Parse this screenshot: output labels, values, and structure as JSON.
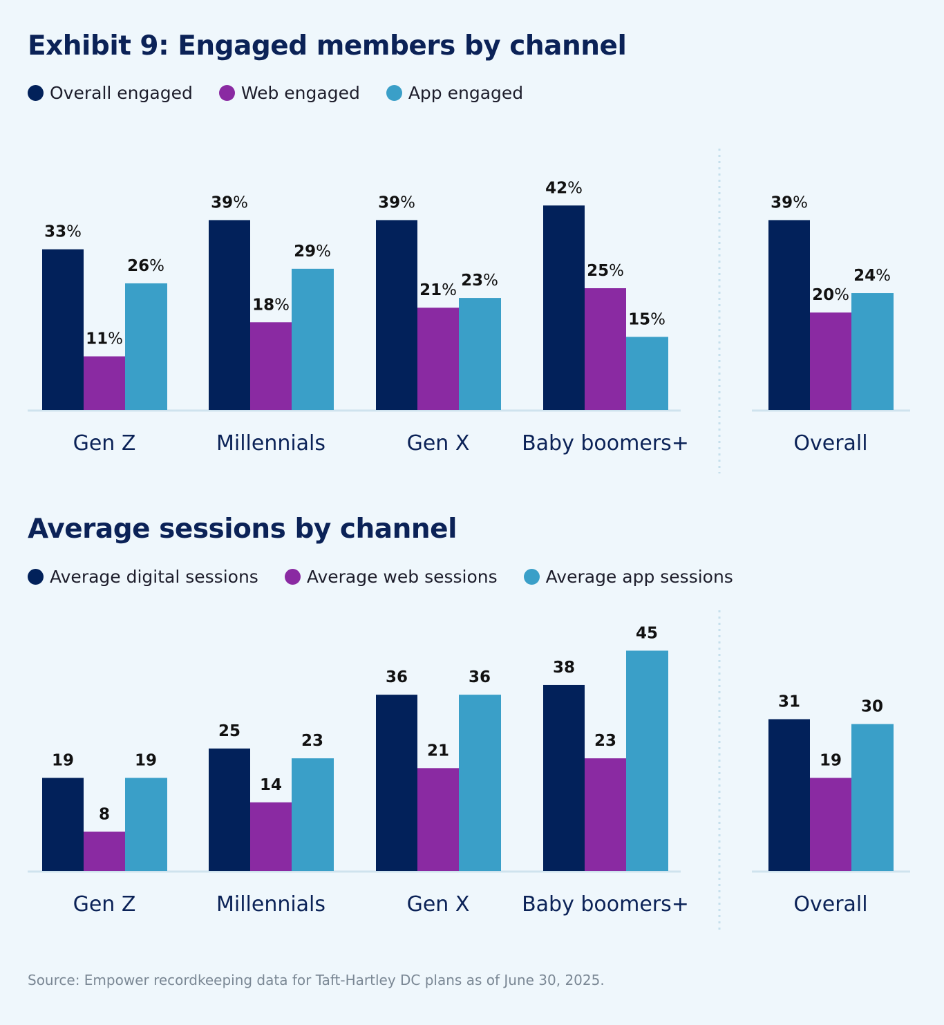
{
  "colors": {
    "overall": "#02215a",
    "web": "#8a2aa2",
    "app": "#3a9fc8",
    "axis": "#cfe3ee",
    "background": "#eff7fc"
  },
  "chart_data": [
    {
      "type": "bar",
      "title": "Exhibit 9: Engaged members by channel",
      "categories": [
        "Gen Z",
        "Millennials",
        "Gen X",
        "Baby boomers+",
        "Overall"
      ],
      "unit": "%",
      "series": [
        {
          "name": "Overall engaged",
          "values": [
            33,
            39,
            39,
            42,
            39
          ]
        },
        {
          "name": "Web engaged",
          "values": [
            11,
            18,
            21,
            25,
            20
          ]
        },
        {
          "name": "App engaged",
          "values": [
            26,
            29,
            23,
            15,
            24
          ]
        }
      ],
      "legend": "top-left",
      "grid": false,
      "ylim": [
        0,
        45
      ]
    },
    {
      "type": "bar",
      "title": "Average sessions by channel",
      "categories": [
        "Gen Z",
        "Millennials",
        "Gen X",
        "Baby boomers+",
        "Overall"
      ],
      "unit": "",
      "series": [
        {
          "name": "Average digital sessions",
          "values": [
            19,
            25,
            36,
            38,
            31
          ]
        },
        {
          "name": "Average web sessions",
          "values": [
            8,
            14,
            21,
            23,
            19
          ]
        },
        {
          "name": "Average app sessions",
          "values": [
            19,
            23,
            36,
            45,
            30
          ]
        }
      ],
      "legend": "top-left",
      "grid": false,
      "ylim": [
        0,
        48
      ]
    }
  ],
  "source": "Source: Empower recordkeeping data for Taft-Hartley DC plans as of June 30, 2025."
}
